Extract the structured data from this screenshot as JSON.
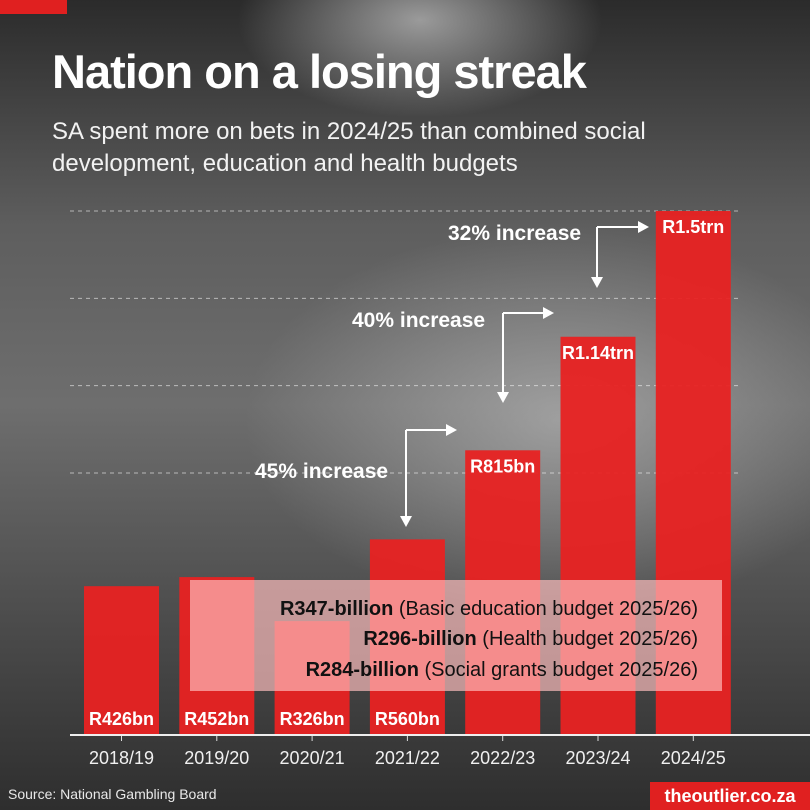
{
  "header": {
    "title": "Nation on a losing streak",
    "subtitle": "SA spent more on bets in 2024/25 than combined social development, education and health budgets"
  },
  "chart_data": {
    "type": "bar",
    "categories": [
      "2018/19",
      "2019/20",
      "2020/21",
      "2021/22",
      "2022/23",
      "2023/24",
      "2024/25"
    ],
    "values": [
      426,
      452,
      326,
      560,
      815,
      1140,
      1500
    ],
    "unit": "R billion",
    "data_labels": [
      "R426bn",
      "R452bn",
      "R326bn",
      "R560bn",
      "R815bn",
      "R1.14trn",
      "R1.5trn"
    ],
    "ylim": [
      0,
      1500
    ],
    "grid": true,
    "bar_color": "#e82222",
    "annotations": [
      {
        "label": "45% increase",
        "from": "2021/22",
        "to": "2022/23"
      },
      {
        "label": "40% increase",
        "from": "2022/23",
        "to": "2023/24"
      },
      {
        "label": "32% increase",
        "from": "2023/24",
        "to": "2024/25"
      }
    ],
    "reference_box": [
      {
        "amount": "R347-billion",
        "desc": "(Basic education budget 2025/26)"
      },
      {
        "amount": "R296-billion",
        "desc": "(Health budget 2025/26)"
      },
      {
        "amount": "R284-billion",
        "desc": "(Social grants budget 2025/26)"
      }
    ]
  },
  "footer": {
    "source": "Source: National Gambling Board",
    "brand": "theoutlier.co.za"
  }
}
